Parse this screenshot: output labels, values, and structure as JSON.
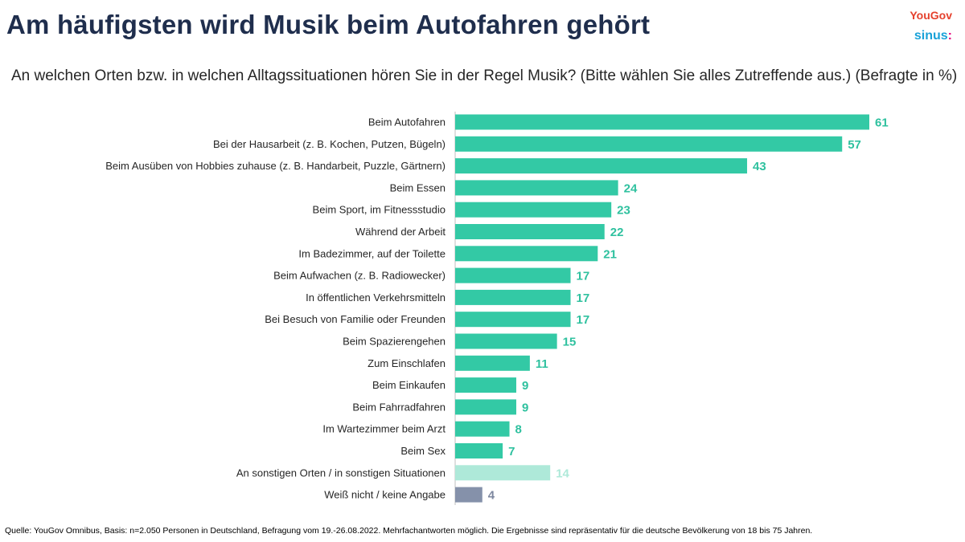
{
  "header": {
    "title": "Am häufigsten wird Musik beim Autofahren gehört",
    "subtitle": "An welchen Orten bzw. in welchen Alltagssituationen hören Sie in der Regel Musik? (Bitte wählen Sie alles Zutreffende aus.) (Befragte in %)"
  },
  "logos": {
    "yougov": "YouGov",
    "sinus": "sinus",
    "sinus_dots": ":"
  },
  "footer": {
    "source": "Quelle: YouGov Omnibus, Basis: n=2.050 Personen in Deutschland, Befragung vom 19.-26.08.2022. Mehrfachantworten möglich. Die Ergebnisse sind repräsentativ für die deutsche Bevölkerung von 18 bis 75 Jahren."
  },
  "colors": {
    "title": "#1f2e4d",
    "bar_main": "#33c9a5",
    "bar_other": "#aee9d9",
    "bar_unknown": "#8591aa",
    "label_main": "#2fc19f",
    "label_other": "#aee9d9",
    "label_unknown": "#7d879f",
    "axis": "#bfbfbf"
  },
  "chart_data": {
    "type": "bar",
    "orientation": "horizontal",
    "title": "Am häufigsten wird Musik beim Autofahren gehört",
    "xlabel": "",
    "ylabel": "",
    "xlim": [
      0,
      61
    ],
    "unit": "%",
    "categories": [
      "Beim Autofahren",
      "Bei der Hausarbeit (z. B. Kochen, Putzen, Bügeln)",
      "Beim Ausüben von Hobbies zuhause (z. B. Handarbeit, Puzzle, Gärtnern)",
      "Beim Essen",
      "Beim Sport, im Fitnessstudio",
      "Während der Arbeit",
      "Im Badezimmer, auf der Toilette",
      "Beim Aufwachen (z. B. Radiowecker)",
      "In öffentlichen Verkehrsmitteln",
      "Bei Besuch von Familie oder Freunden",
      "Beim Spazierengehen",
      "Zum Einschlafen",
      "Beim Einkaufen",
      "Beim Fahrradfahren",
      "Im Wartezimmer beim Arzt",
      "Beim Sex",
      "An sonstigen Orten / in sonstigen Situationen",
      "Weiß nicht / keine Angabe"
    ],
    "values": [
      61,
      57,
      43,
      24,
      23,
      22,
      21,
      17,
      17,
      17,
      15,
      11,
      9,
      9,
      8,
      7,
      14,
      4
    ],
    "groups": [
      "main",
      "main",
      "main",
      "main",
      "main",
      "main",
      "main",
      "main",
      "main",
      "main",
      "main",
      "main",
      "main",
      "main",
      "main",
      "main",
      "other",
      "unknown"
    ]
  }
}
